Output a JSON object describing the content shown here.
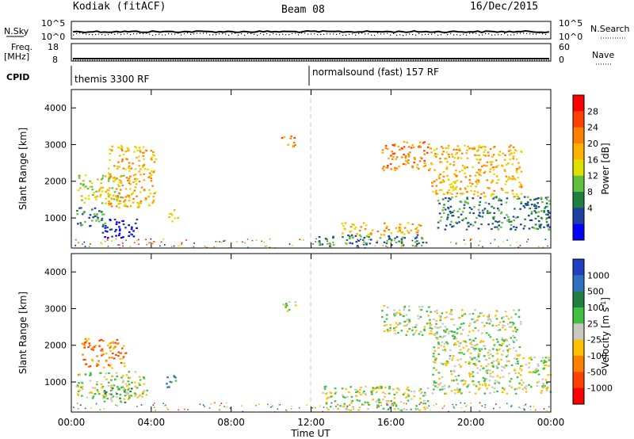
{
  "header": {
    "station": "Kodiak (fitACF)",
    "beam": "Beam 08",
    "date": "16/Dec/2015"
  },
  "top_panel": {
    "left_label": "N.Sky",
    "right_label": "N.Search",
    "left_ticks": [
      "10^5",
      "10^0"
    ],
    "right_ticks": [
      "10^5",
      "10^0"
    ]
  },
  "freq_panel": {
    "left_label_1": "Freq.",
    "left_label_2": "[MHz]",
    "right_label": "Nave",
    "left_ticks": [
      "18",
      "8"
    ],
    "right_ticks": [
      "60",
      "0"
    ]
  },
  "cpid_panel": {
    "label": "CPID",
    "mode_1": "themis 3300 RF",
    "mode_2": "normalsound (fast) 157 RF"
  },
  "chart_data": [
    {
      "type": "heatmap",
      "quantity": "power",
      "ylabel": "Slant Range [km]",
      "xlabel": "Time UT",
      "xlim": [
        "00:00",
        "24:00"
      ],
      "ylim": [
        180,
        4500
      ],
      "y_ticks": [
        "1000",
        "2000",
        "3000",
        "4000"
      ],
      "x_ticks": [
        "00:00",
        "04:00",
        "08:00",
        "12:00",
        "16:00",
        "20:00",
        "00:00"
      ],
      "colorbar_label": "Power [dB]",
      "colorbar_ticks": [
        "28",
        "24",
        "20",
        "16",
        "12",
        "8",
        "4"
      ],
      "colorbar_colors": [
        "#ff0000",
        "#ff4000",
        "#ff8000",
        "#ffb000",
        "#e0e000",
        "#60c040",
        "#208040",
        "#2040a0",
        "#0000ff"
      ],
      "echo_regions": [
        {
          "t0": 0.2,
          "t1": 1.8,
          "r0": 780,
          "r1": 1300,
          "level": 6
        },
        {
          "t0": 1.5,
          "t1": 3.3,
          "r0": 480,
          "r1": 1000,
          "level": 8
        },
        {
          "t0": 0.3,
          "t1": 2.6,
          "r0": 1400,
          "r1": 2200,
          "level": 4
        },
        {
          "t0": 1.8,
          "t1": 4.2,
          "r0": 1300,
          "r1": 3000,
          "level": 3
        },
        {
          "t0": 4.8,
          "t1": 5.3,
          "r0": 900,
          "r1": 1250,
          "level": 4
        },
        {
          "t0": 10.5,
          "t1": 11.2,
          "r0": 2950,
          "r1": 3300,
          "level": 2
        },
        {
          "t0": 12.3,
          "t1": 17.8,
          "r0": 250,
          "r1": 560,
          "level": 6
        },
        {
          "t0": 13.5,
          "t1": 17.5,
          "r0": 560,
          "r1": 900,
          "level": 3
        },
        {
          "t0": 15.5,
          "t1": 18.0,
          "r0": 2300,
          "r1": 3100,
          "level": 2
        },
        {
          "t0": 18.3,
          "t1": 24.0,
          "r0": 700,
          "r1": 1600,
          "level": 6
        },
        {
          "t0": 18.0,
          "t1": 22.5,
          "r0": 1600,
          "r1": 3000,
          "level": 3
        }
      ]
    },
    {
      "type": "heatmap",
      "quantity": "velocity",
      "ylabel": "Slant Range [km]",
      "xlabel": "Time UT",
      "xlim": [
        "00:00",
        "24:00"
      ],
      "ylim": [
        180,
        4500
      ],
      "y_ticks": [
        "1000",
        "2000",
        "3000",
        "4000"
      ],
      "x_ticks": [
        "00:00",
        "04:00",
        "08:00",
        "12:00",
        "16:00",
        "20:00",
        "00:00"
      ],
      "colorbar_label": "Velocity [m s^-1]",
      "colorbar_ticks": [
        "1000",
        "500",
        "100",
        "25",
        "-25",
        "-100",
        "-500",
        "-1000"
      ],
      "colorbar_colors": [
        "#2040c0",
        "#3070c0",
        "#208040",
        "#40c040",
        "#c8c8c0",
        "#ffc000",
        "#ff8000",
        "#ff4000",
        "#ff0000"
      ],
      "echo_regions": [
        {
          "t0": 0.2,
          "t1": 3.8,
          "r0": 550,
          "r1": 1300,
          "level": 4
        },
        {
          "t0": 1.5,
          "t1": 3.0,
          "r0": 450,
          "r1": 900,
          "level": 3
        },
        {
          "t0": 0.5,
          "t1": 2.8,
          "r0": 1400,
          "r1": 2200,
          "level": 6
        },
        {
          "t0": 4.6,
          "t1": 5.2,
          "r0": 850,
          "r1": 1200,
          "level": 2
        },
        {
          "t0": 10.5,
          "t1": 11.2,
          "r0": 2950,
          "r1": 3300,
          "level": 4
        },
        {
          "t0": 12.5,
          "t1": 18.0,
          "r0": 250,
          "r1": 900,
          "level": 4
        },
        {
          "t0": 15.5,
          "t1": 18.0,
          "r0": 2300,
          "r1": 3100,
          "level": 4
        },
        {
          "t0": 18.0,
          "t1": 24.0,
          "r0": 700,
          "r1": 1700,
          "level": 4
        },
        {
          "t0": 18.0,
          "t1": 22.5,
          "r0": 1700,
          "r1": 3000,
          "level": 4
        }
      ]
    }
  ],
  "x_axis": {
    "ticks": [
      "00:00",
      "04:00",
      "08:00",
      "12:00",
      "16:00",
      "20:00",
      "00:00"
    ],
    "label": "Time UT"
  }
}
